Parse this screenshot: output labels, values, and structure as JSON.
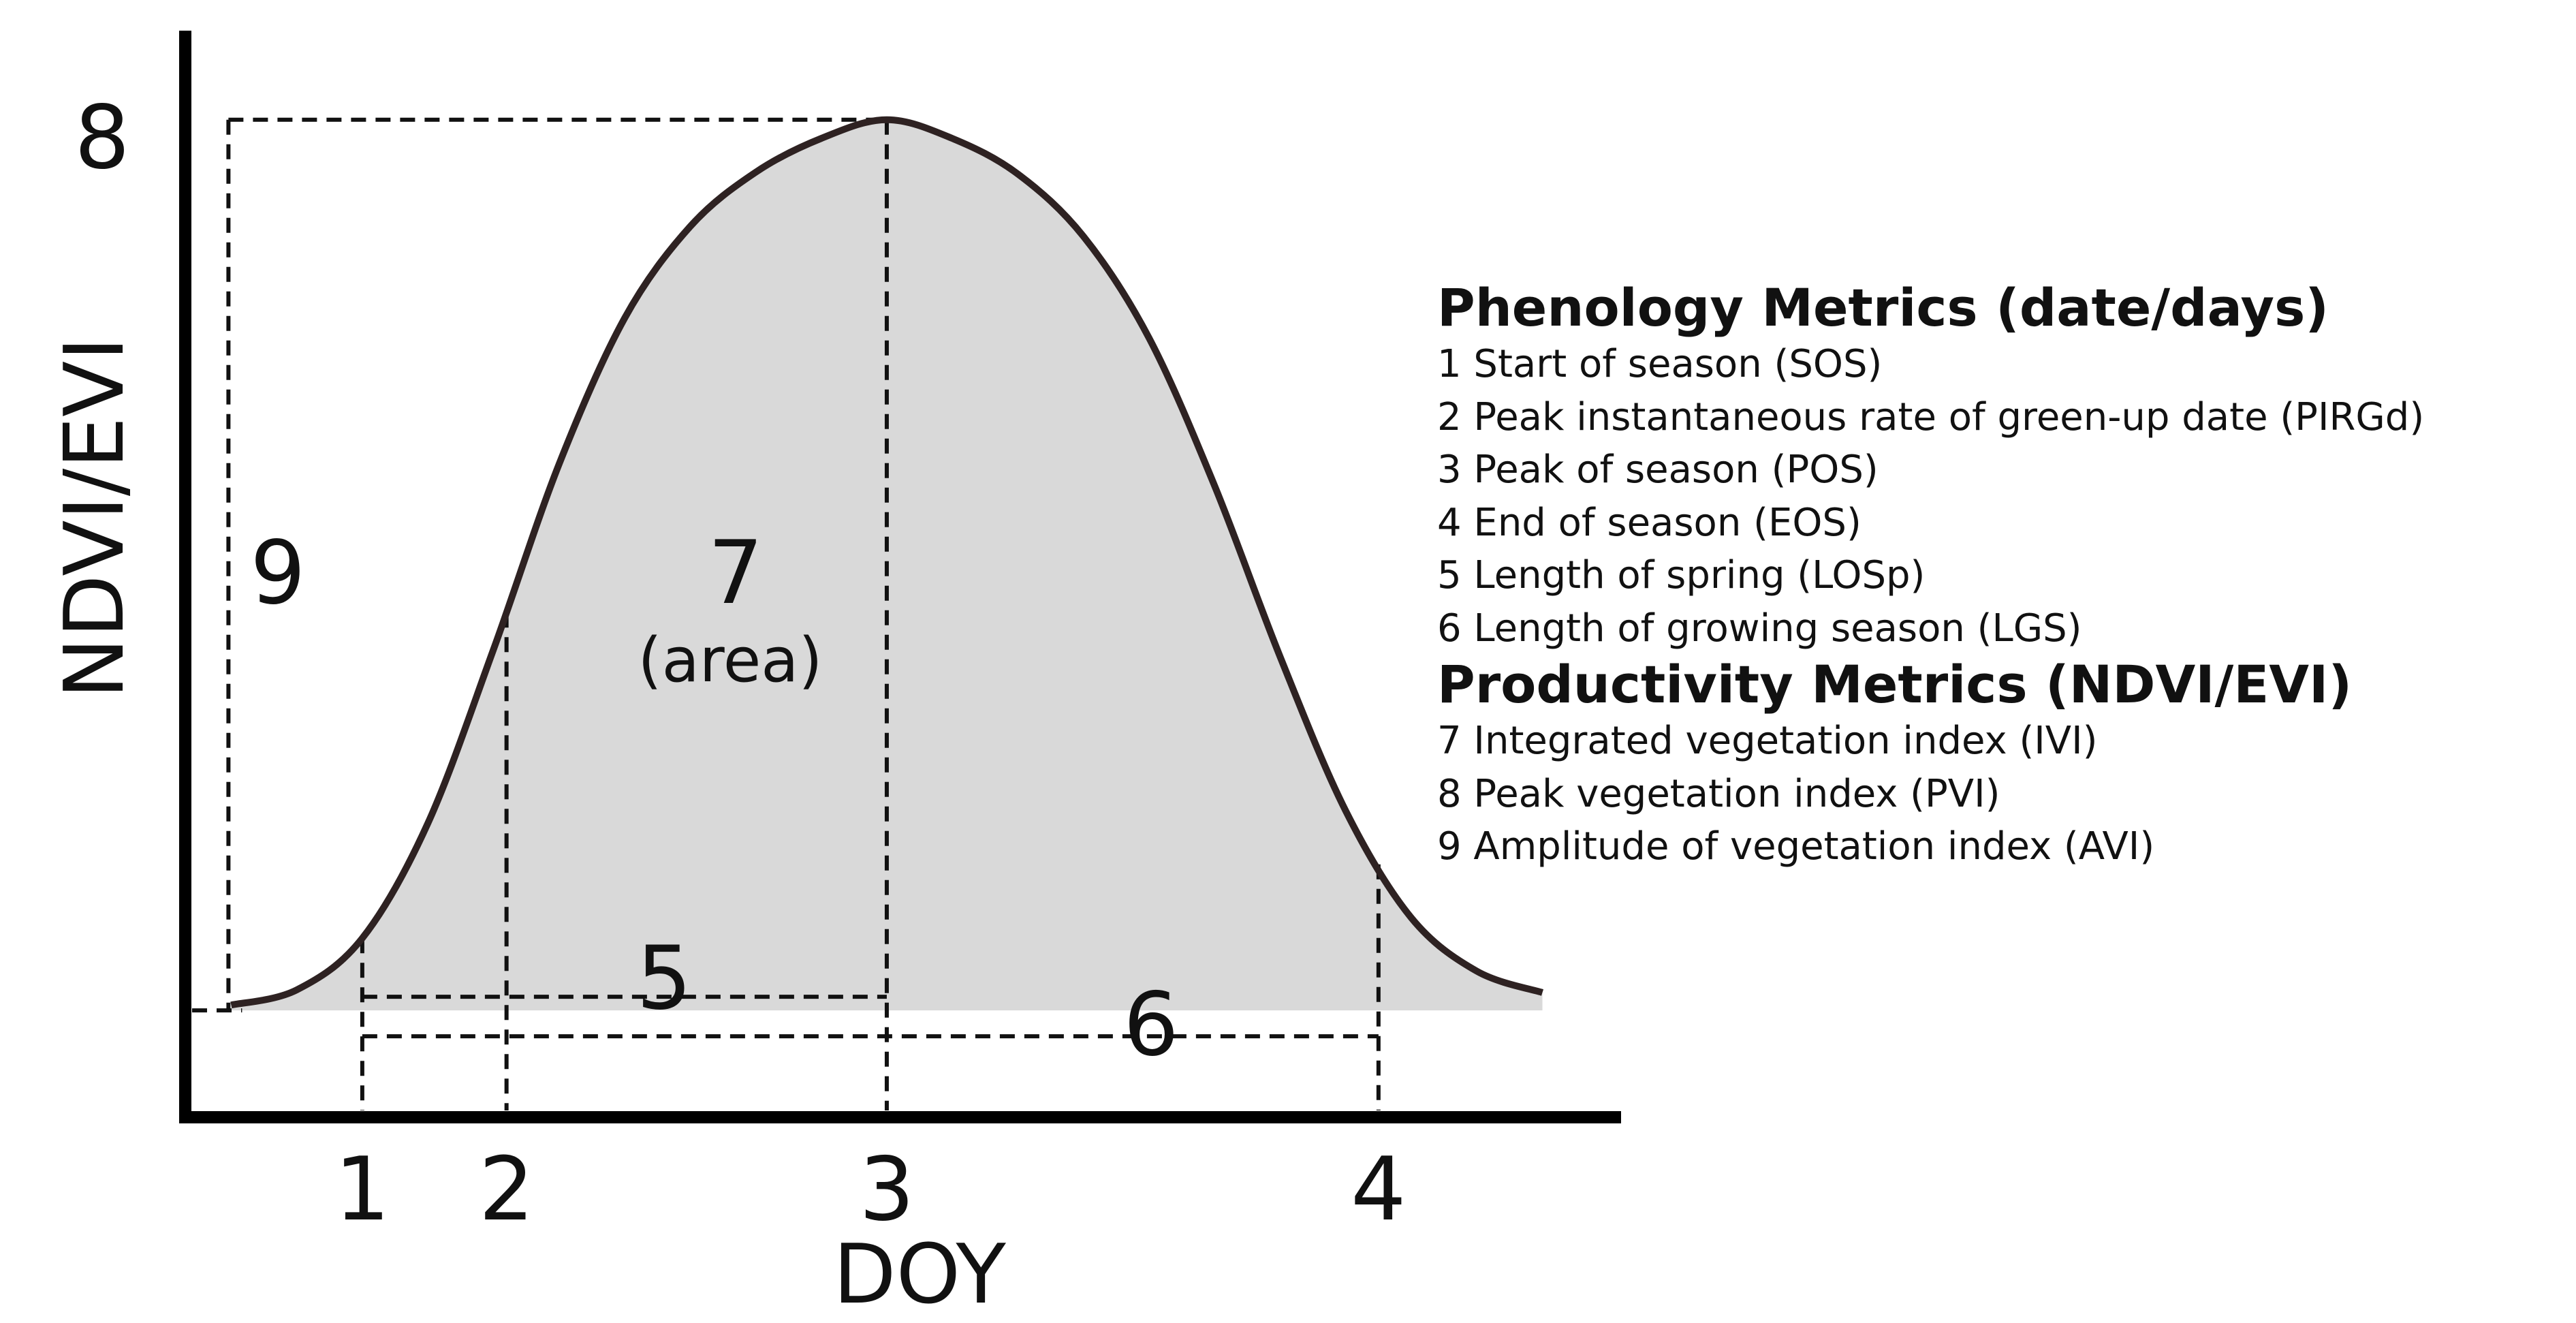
{
  "chart_data": {
    "type": "line",
    "title": "",
    "xlabel": "DOY",
    "ylabel": "NDVI/EVI",
    "description_curve": "Seasonal vegetation index curve (shaded area under curve)",
    "x": [
      0,
      0.5,
      1,
      1.5,
      2,
      2.5,
      3,
      3.5,
      4,
      4.5,
      5,
      5.5,
      6,
      6.5,
      7,
      7.5,
      8,
      8.5,
      9,
      9.5,
      10
    ],
    "y": [
      0.006,
      0.023,
      0.081,
      0.21,
      0.405,
      0.613,
      0.777,
      0.88,
      0.941,
      0.979,
      1.0,
      0.979,
      0.939,
      0.869,
      0.755,
      0.589,
      0.397,
      0.224,
      0.104,
      0.044,
      0.02
    ],
    "xlim": [
      -0.35,
      10.6
    ],
    "ylim": [
      -0.12,
      1.1
    ],
    "markers_x": [
      {
        "label": "1",
        "x": 1.0
      },
      {
        "label": "2",
        "x": 2.1
      },
      {
        "label": "3",
        "x": 5.0
      },
      {
        "label": "4",
        "x": 8.75
      }
    ],
    "peak_label": "8",
    "amplitude_label": "9",
    "area_label": "7",
    "area_sublabel": "(area)",
    "span_labels": [
      {
        "label": "5",
        "from": "1",
        "to": "3"
      },
      {
        "label": "6",
        "from": "1",
        "to": "4"
      }
    ]
  },
  "legend": {
    "phenology_title": "Phenology Metrics (date/days)",
    "phenology_items": [
      "1 Start of season (SOS)",
      "2 Peak instantaneous rate of green-up date (PIRGd)",
      "3 Peak of season (POS)",
      "4 End of season (EOS)",
      "5 Length of spring (LOSp)",
      "6 Length of growing season (LGS)"
    ],
    "productivity_title": "Productivity Metrics (NDVI/EVI)",
    "productivity_items": [
      "7 Integrated vegetation index (IVI)",
      "8 Peak vegetation index (PVI)",
      "9 Amplitude of vegetation index (AVI)"
    ]
  },
  "colors": {
    "curve": "#2e2222",
    "fill": "#d9d9d9",
    "axis": "#000000",
    "dashed": "#111111"
  }
}
